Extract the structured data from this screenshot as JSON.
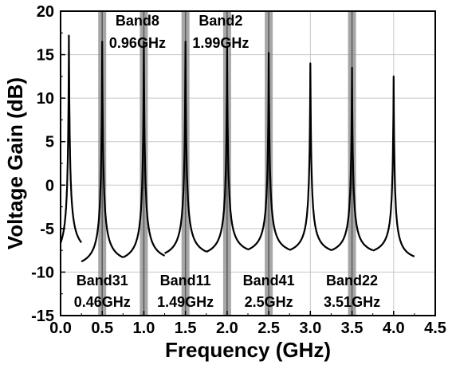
{
  "chart_data": {
    "type": "line",
    "xlabel": "Frequency (GHz)",
    "ylabel": "Voltage Gain (dB)",
    "xlim": [
      0.0,
      4.5
    ],
    "ylim": [
      -15,
      20
    ],
    "xticks": [
      "0.0",
      "0.5",
      "1.0",
      "1.5",
      "2.0",
      "2.5",
      "3.0",
      "3.5",
      "4.0",
      "4.5"
    ],
    "yticks": [
      "-15",
      "-10",
      "-5",
      "0",
      "5",
      "10",
      "15",
      "20"
    ],
    "grid": true,
    "band_markers": [
      {
        "band": "Band31",
        "freq": "0.46GHz",
        "x": 0.5,
        "label_position": "bottom"
      },
      {
        "band": "Band8",
        "freq": "0.96GHz",
        "x": 1.0,
        "label_position": "top"
      },
      {
        "band": "Band11",
        "freq": "1.49GHz",
        "x": 1.5,
        "label_position": "bottom"
      },
      {
        "band": "Band2",
        "freq": "1.99GHz",
        "x": 2.0,
        "label_position": "top"
      },
      {
        "band": "Band41",
        "freq": "2.5GHz",
        "x": 2.5,
        "label_position": "bottom"
      },
      {
        "band": "Band22",
        "freq": "3.51GHz",
        "x": 3.5,
        "label_position": "bottom"
      }
    ],
    "series": [
      {
        "center": 0.1,
        "x": [
          0.0,
          0.05,
          0.08,
          0.1,
          0.12,
          0.15,
          0.2,
          0.25
        ],
        "y": [
          -9.5,
          -2.0,
          6.0,
          17.2,
          8.0,
          0.0,
          -5.5,
          -8.5
        ]
      },
      {
        "center": 0.5,
        "x": [
          0.25,
          0.33,
          0.42,
          0.47,
          0.5,
          0.53,
          0.58,
          0.67,
          0.75
        ],
        "y": [
          -10.0,
          -8.0,
          -4.0,
          2.0,
          16.5,
          2.0,
          -4.0,
          -8.0,
          -9.5
        ]
      },
      {
        "center": 1.0,
        "x": [
          0.75,
          0.83,
          0.92,
          0.97,
          1.0,
          1.03,
          1.08,
          1.17,
          1.25
        ],
        "y": [
          -9.5,
          -8.0,
          -4.0,
          2.0,
          16.5,
          2.0,
          -4.0,
          -8.0,
          -9.3
        ]
      },
      {
        "center": 1.5,
        "x": [
          1.25,
          1.33,
          1.42,
          1.47,
          1.5,
          1.53,
          1.58,
          1.67,
          1.75
        ],
        "y": [
          -9.0,
          -8.0,
          -4.0,
          2.0,
          16.5,
          2.0,
          -4.0,
          -8.0,
          -8.8
        ]
      },
      {
        "center": 2.0,
        "x": [
          1.75,
          1.83,
          1.92,
          1.97,
          2.0,
          2.03,
          2.08,
          2.17,
          2.25
        ],
        "y": [
          -8.8,
          -7.8,
          -4.0,
          2.0,
          15.8,
          2.0,
          -4.0,
          -7.8,
          -8.5
        ]
      },
      {
        "center": 2.5,
        "x": [
          2.25,
          2.33,
          2.42,
          2.47,
          2.5,
          2.53,
          2.58,
          2.67,
          2.75
        ],
        "y": [
          -8.5,
          -7.8,
          -4.0,
          2.0,
          15.2,
          2.0,
          -4.0,
          -7.8,
          -8.5
        ]
      },
      {
        "center": 3.0,
        "x": [
          2.75,
          2.83,
          2.92,
          2.97,
          3.0,
          3.03,
          3.08,
          3.17,
          3.25
        ],
        "y": [
          -8.5,
          -7.8,
          -4.5,
          1.0,
          14.0,
          1.0,
          -4.5,
          -7.8,
          -8.5
        ]
      },
      {
        "center": 3.5,
        "x": [
          3.25,
          3.33,
          3.42,
          3.47,
          3.5,
          3.53,
          3.58,
          3.67,
          3.75
        ],
        "y": [
          -8.5,
          -7.8,
          -4.5,
          1.0,
          13.5,
          1.0,
          -4.5,
          -7.8,
          -8.5
        ]
      },
      {
        "center": 4.0,
        "x": [
          3.75,
          3.83,
          3.92,
          3.97,
          4.0,
          4.03,
          4.08,
          4.17,
          4.25
        ],
        "y": [
          -8.5,
          -7.8,
          -4.5,
          0.5,
          12.5,
          0.5,
          -4.5,
          -8.0,
          -9.2
        ]
      }
    ]
  }
}
